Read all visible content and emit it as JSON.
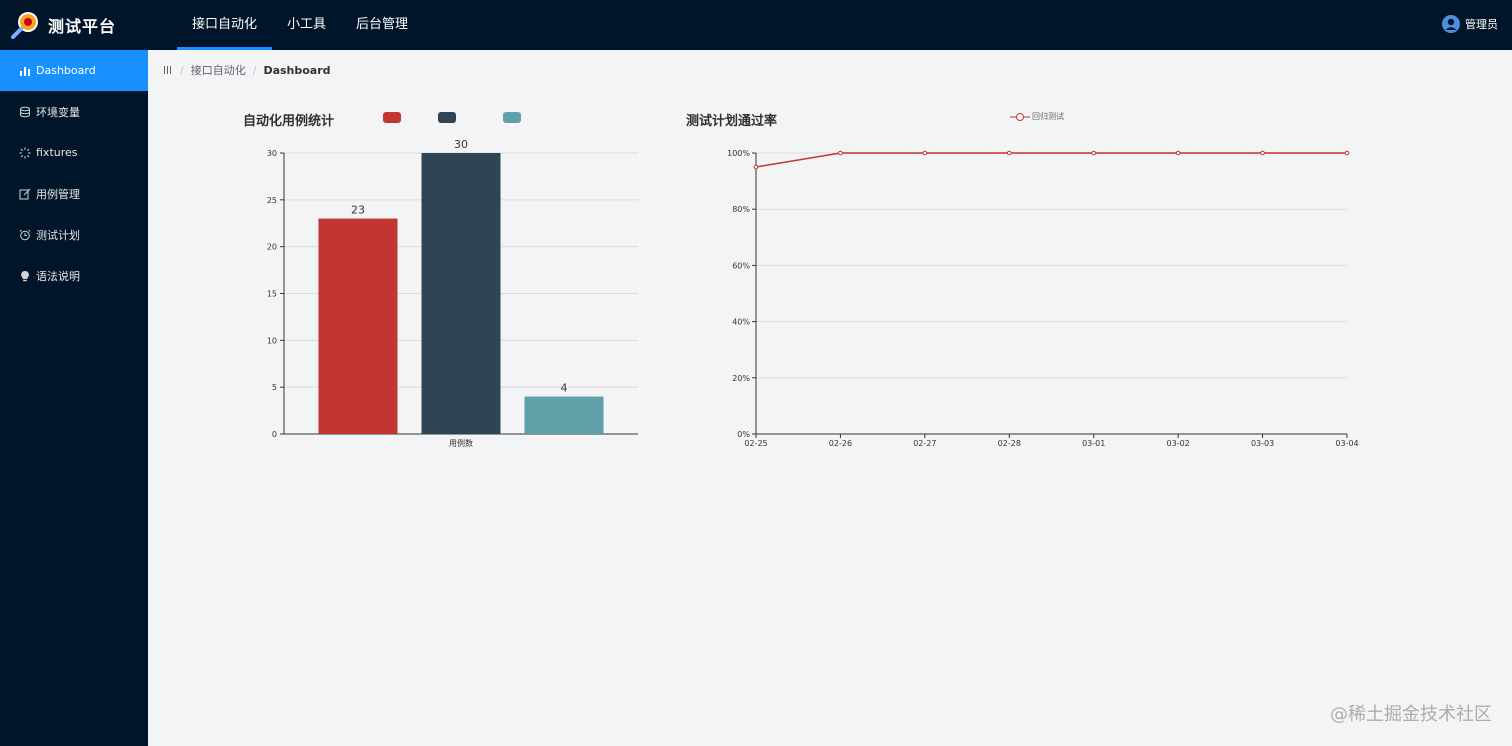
{
  "app": {
    "title": "测试平台"
  },
  "topnav": {
    "items": [
      "接口自动化",
      "小工具",
      "后台管理"
    ],
    "active_index": 0
  },
  "user": {
    "name": "管理员"
  },
  "sidebar": {
    "items": [
      {
        "label": "Dashboard",
        "icon": "bar-chart-icon",
        "active": true
      },
      {
        "label": "环境变量",
        "icon": "database-icon"
      },
      {
        "label": "fixtures",
        "icon": "loading-icon"
      },
      {
        "label": "用例管理",
        "icon": "edit-icon"
      },
      {
        "label": "测试计划",
        "icon": "alarm-clock-icon"
      },
      {
        "label": "语法说明",
        "icon": "bulb-icon"
      }
    ]
  },
  "breadcrumb": {
    "items": [
      "接口自动化",
      "Dashboard"
    ]
  },
  "colors": {
    "accent": "#1890ff",
    "nav_bg": "#001529",
    "red": "#c23531",
    "dark": "#2f4554",
    "teal": "#61a0a8"
  },
  "chart_data": [
    {
      "type": "bar",
      "title": "自动化用例统计",
      "categories": [
        "用例数"
      ],
      "series": [
        {
          "name": "",
          "values": [
            23
          ],
          "color": "#c23531"
        },
        {
          "name": "",
          "values": [
            30
          ],
          "color": "#2f4554"
        },
        {
          "name": "",
          "values": [
            4
          ],
          "color": "#61a0a8"
        }
      ],
      "ylim": [
        0,
        30
      ],
      "yticks": [
        0,
        5,
        10,
        15,
        20,
        25,
        30
      ],
      "grid": true,
      "legend_position": "top"
    },
    {
      "type": "line",
      "title": "测试计划通过率",
      "x": [
        "02-25",
        "02-26",
        "02-27",
        "02-28",
        "03-01",
        "03-02",
        "03-03",
        "03-04"
      ],
      "series": [
        {
          "name": "回归测试",
          "values": [
            95,
            100,
            100,
            100,
            100,
            100,
            100,
            100
          ],
          "color": "#c23531"
        }
      ],
      "ylim": [
        0,
        100
      ],
      "yticks": [
        "0%",
        "20%",
        "40%",
        "60%",
        "80%",
        "100%"
      ],
      "grid": true,
      "legend_position": "top"
    }
  ],
  "watermark": "@稀土掘金技术社区"
}
